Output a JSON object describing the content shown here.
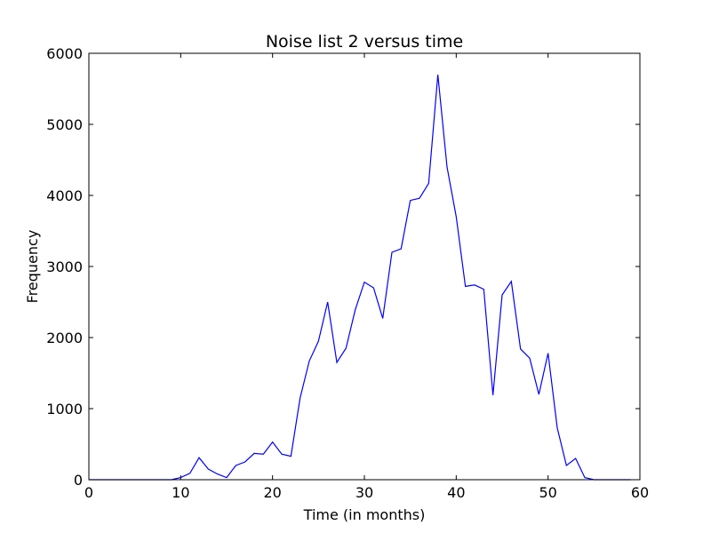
{
  "chart_data": {
    "type": "line",
    "title": "Noise list 2 versus time",
    "xlabel": "Time (in months)",
    "ylabel": "Frequency",
    "xlim": [
      0,
      60
    ],
    "ylim": [
      0,
      6000
    ],
    "xticks": [
      0,
      10,
      20,
      30,
      40,
      50,
      60
    ],
    "yticks": [
      0,
      1000,
      2000,
      3000,
      4000,
      5000,
      6000
    ],
    "grid": false,
    "line_color": "#0000ff",
    "series": [
      {
        "x": [
          0,
          1,
          2,
          3,
          4,
          5,
          6,
          7,
          8,
          9,
          10,
          11,
          12,
          13,
          14,
          15,
          16,
          17,
          18,
          19,
          20,
          21,
          22,
          23,
          24,
          25,
          26,
          27,
          28,
          29,
          30,
          31,
          32,
          33,
          34,
          35,
          36,
          37,
          38,
          39,
          40,
          41,
          42,
          43,
          44,
          45,
          46,
          47,
          48,
          49,
          50,
          51,
          52,
          53,
          54,
          55,
          56,
          57,
          58,
          59
        ],
        "values": [
          0,
          0,
          0,
          0,
          0,
          0,
          0,
          0,
          0,
          0,
          30,
          90,
          310,
          150,
          80,
          30,
          200,
          250,
          370,
          360,
          530,
          360,
          330,
          1150,
          1670,
          1950,
          2500,
          1650,
          1850,
          2390,
          2780,
          2700,
          2270,
          3200,
          3250,
          3930,
          3960,
          4170,
          5700,
          4400,
          3700,
          2720,
          2740,
          2680,
          1190,
          2600,
          2790,
          1840,
          1710,
          1200,
          1780,
          730,
          200,
          300,
          30,
          0,
          0,
          0,
          0,
          0
        ]
      }
    ]
  }
}
